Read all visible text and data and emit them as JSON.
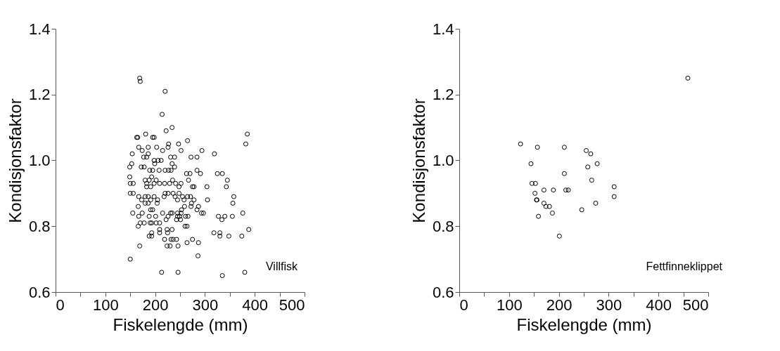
{
  "chart_data": [
    {
      "type": "scatter",
      "xlabel": "Fiskelengde (mm)",
      "ylabel": "Kondisjonsfaktor",
      "annotations": [
        "Villfisk"
      ],
      "xlim": [
        0,
        500
      ],
      "ylim": [
        0.6,
        1.4
      ],
      "xticks": [
        0,
        {
          "value": 50,
          "label": null
        },
        100,
        {
          "value": 150,
          "label": null
        },
        200,
        {
          "value": 250,
          "label": null
        },
        300,
        {
          "value": 350,
          "label": null
        },
        400,
        {
          "value": 450,
          "label": null
        },
        500
      ],
      "yticks": [
        0.6,
        0.8,
        {
          "value": 1,
          "label": "1.0"
        },
        1.2,
        1.4
      ],
      "grid": false,
      "marker": "circle",
      "series": [
        {
          "color": "#000000",
          "x": [
            169,
            170,
            220,
            214,
            222,
            234,
            163,
            165,
            181,
            195,
            198,
            265,
            227,
            247,
            167,
            186,
            203,
            154,
            174,
            177,
            183,
            186,
            215,
            226,
            231,
            239,
            252,
            272,
            149,
            153,
            172,
            178,
            198,
            199,
            206,
            212,
            189,
            195,
            208,
            220,
            227,
            234,
            239,
            232,
            149,
            150,
            156,
            180,
            183,
            188,
            193,
            183,
            191,
            198,
            202,
            209,
            219,
            229,
            235,
            241,
            248,
            252,
            263,
            270,
            267,
            275,
            150,
            156,
            167,
            173,
            180,
            186,
            180,
            186,
            191,
            198,
            204,
            205,
            218,
            220,
            226,
            236,
            240,
            245,
            248,
            255,
            258,
            265,
            271,
            273,
            155,
            166,
            167,
            174,
            166,
            170,
            178,
            188,
            191,
            195,
            201,
            202,
            190,
            193,
            209,
            209,
            209,
            215,
            222,
            226,
            231,
            234,
            245,
            245,
            249,
            252,
            243,
            251,
            260,
            264,
            261,
            266,
            253,
            259,
            272,
            224,
            225,
            234,
            188,
            193,
            193,
            219,
            232,
            236,
            243,
            224,
            230,
            246,
            264,
            275,
            169,
            150,
            213,
            246,
            385,
            382,
            294,
            319,
            284,
            284,
            291,
            325,
            335,
            345,
            278,
            304,
            343,
            305,
            358,
            356,
            278,
            287,
            284,
            293,
            297,
            327,
            334,
            340,
            355,
            376,
            388,
            318,
            330,
            330,
            348,
            374,
            287,
            286,
            335,
            380
          ],
          "values": [
            1.25,
            1.24,
            1.21,
            1.14,
            1.09,
            1.1,
            1.07,
            1.07,
            1.08,
            1.07,
            1.07,
            1.06,
            1.05,
            1.05,
            1.04,
            1.04,
            1.04,
            1.02,
            1.03,
            1.01,
            1.01,
            1.02,
            1.03,
            1.04,
            1.01,
            1.01,
            1.03,
            1.01,
            0.98,
            0.99,
            0.98,
            0.98,
            1.0,
            0.99,
            1.0,
            1.0,
            0.97,
            0.97,
            0.97,
            0.97,
            0.97,
            0.99,
            0.98,
            0.97,
            0.95,
            0.93,
            0.93,
            0.94,
            0.93,
            0.94,
            0.95,
            0.92,
            0.92,
            0.93,
            0.94,
            0.93,
            0.93,
            0.93,
            0.94,
            0.93,
            0.92,
            0.93,
            0.96,
            0.96,
            0.94,
            0.92,
            0.9,
            0.9,
            0.89,
            0.88,
            0.89,
            0.89,
            0.87,
            0.87,
            0.88,
            0.89,
            0.87,
            0.88,
            0.89,
            0.9,
            0.9,
            0.9,
            0.89,
            0.88,
            0.9,
            0.89,
            0.88,
            0.89,
            0.89,
            0.87,
            0.84,
            0.86,
            0.83,
            0.84,
            0.8,
            0.81,
            0.81,
            0.83,
            0.85,
            0.85,
            0.83,
            0.81,
            0.81,
            0.81,
            0.81,
            0.79,
            0.78,
            0.84,
            0.82,
            0.83,
            0.84,
            0.84,
            0.84,
            0.83,
            0.83,
            0.84,
            0.82,
            0.82,
            0.8,
            0.8,
            0.83,
            0.83,
            0.85,
            0.86,
            0.86,
            0.79,
            0.78,
            0.79,
            0.77,
            0.77,
            0.78,
            0.76,
            0.76,
            0.76,
            0.76,
            0.74,
            0.74,
            0.74,
            0.75,
            0.76,
            0.74,
            0.7,
            0.66,
            0.66,
            1.08,
            1.05,
            1.03,
            1.02,
            1.01,
            0.97,
            0.96,
            0.96,
            0.96,
            0.94,
            0.92,
            0.92,
            0.92,
            0.88,
            0.89,
            0.87,
            0.88,
            0.86,
            0.85,
            0.84,
            0.84,
            0.83,
            0.82,
            0.83,
            0.83,
            0.84,
            0.79,
            0.78,
            0.78,
            0.77,
            0.77,
            0.77,
            0.75,
            0.71,
            0.65,
            0.66
          ]
        }
      ]
    },
    {
      "type": "scatter",
      "xlabel": "Fiskelengde (mm)",
      "ylabel": "Kondisjonsfaktor",
      "annotations": [
        "Fettfinneklippet"
      ],
      "xlim": [
        0,
        500
      ],
      "ylim": [
        0.6,
        1.4
      ],
      "xticks": [
        0,
        {
          "value": 50,
          "label": null
        },
        100,
        {
          "value": 150,
          "label": null
        },
        200,
        {
          "value": 250,
          "label": null
        },
        300,
        {
          "value": 350,
          "label": null
        },
        400,
        {
          "value": 450,
          "label": null
        },
        500
      ],
      "yticks": [
        0.6,
        0.8,
        {
          "value": 1,
          "label": "1.0"
        },
        1.2,
        1.4
      ],
      "grid": false,
      "marker": "circle",
      "series": [
        {
          "color": "#000000",
          "x": [
            459,
            123,
            157,
            211,
            255,
            264,
            144,
            277,
            258,
            211,
            266,
            153,
            146,
            311,
            219,
            214,
            170,
            189,
            152,
            311,
            155,
            156,
            170,
            181,
            174,
            274,
            246,
            187,
            159,
            201
          ],
          "values": [
            1.25,
            1.05,
            1.04,
            1.04,
            1.03,
            1.02,
            0.99,
            0.99,
            0.98,
            0.96,
            0.94,
            0.93,
            0.93,
            0.92,
            0.91,
            0.91,
            0.91,
            0.91,
            0.9,
            0.89,
            0.88,
            0.88,
            0.87,
            0.86,
            0.86,
            0.87,
            0.85,
            0.84,
            0.83,
            0.77
          ]
        }
      ]
    }
  ]
}
